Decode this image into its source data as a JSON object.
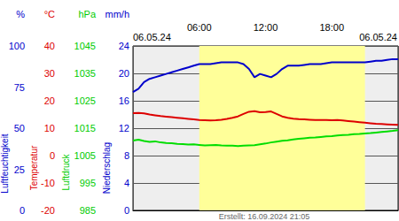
{
  "chart_data": {
    "type": "line",
    "date_labels": [
      "06.05.24",
      "06.05.24"
    ],
    "footer": "Erstellt: 16.09.2024 21:05",
    "grid": true,
    "xlim": [
      0,
      24
    ],
    "xticks": [
      {
        "value": 6,
        "label": "06:00"
      },
      {
        "value": 12,
        "label": "12:00"
      },
      {
        "value": 18,
        "label": "18:00"
      }
    ],
    "daylight": [
      6,
      21
    ],
    "x": [
      0,
      0.5,
      1,
      1.5,
      2,
      2.5,
      3,
      3.5,
      4,
      4.5,
      5,
      5.5,
      6,
      6.5,
      7,
      7.5,
      8,
      8.5,
      9,
      9.5,
      10,
      10.5,
      11,
      11.5,
      12,
      12.5,
      13,
      13.5,
      14,
      14.5,
      15,
      15.5,
      16,
      16.5,
      17,
      17.5,
      18,
      18.5,
      19,
      19.5,
      20,
      20.5,
      21,
      21.5,
      22,
      22.5,
      23,
      23.5,
      24
    ],
    "axes": [
      {
        "label": "Luftfeuchtigkeit",
        "unit": "%",
        "lim": [
          0,
          100
        ],
        "ticks": [
          0,
          25,
          50,
          75,
          100
        ],
        "color": "#0000cc"
      },
      {
        "label": "Temperatur",
        "unit": "°C",
        "lim": [
          -20,
          40
        ],
        "ticks": [
          -20,
          -10,
          0,
          10,
          20,
          30,
          40
        ],
        "color": "#dd0000"
      },
      {
        "label": "Luftdruck",
        "unit": "hPa",
        "lim": [
          985,
          1045
        ],
        "ticks": [
          985,
          995,
          1005,
          1015,
          1025,
          1035,
          1045
        ],
        "color": "#00cc00"
      },
      {
        "label": "Niederschlag",
        "unit": "mm/h",
        "lim": [
          0,
          24
        ],
        "ticks": [
          0,
          4,
          8,
          12,
          16,
          20,
          24
        ],
        "color": "#0000cc"
      }
    ],
    "series": [
      {
        "name": "Luftfeuchtigkeit",
        "axis": "y",
        "color": "#0000cc",
        "values": [
          72,
          74,
          78,
          80,
          81,
          82,
          83,
          84,
          85,
          86,
          87,
          88,
          89,
          89,
          89,
          89.5,
          90,
          90,
          90,
          90,
          89,
          86,
          81,
          83,
          82,
          81,
          83,
          86,
          88,
          88,
          88,
          88.5,
          89,
          89,
          89,
          89.5,
          90,
          90,
          90,
          90,
          90,
          90,
          90,
          90.5,
          91,
          91,
          91.5,
          92,
          92
        ]
      },
      {
        "name": "Temperatur",
        "axis": "y2",
        "color": "#dd0000",
        "values": [
          15.5,
          15.6,
          15.4,
          15.0,
          14.7,
          14.4,
          14.2,
          14.0,
          13.8,
          13.6,
          13.4,
          13.2,
          13.0,
          12.9,
          12.8,
          12.9,
          13.1,
          13.4,
          13.8,
          14.3,
          15.2,
          16.0,
          16.2,
          15.8,
          15.9,
          16.1,
          15.2,
          14.3,
          13.8,
          13.5,
          13.3,
          13.2,
          13.1,
          13.0,
          13.0,
          13.0,
          12.9,
          13.0,
          12.8,
          12.6,
          12.4,
          12.2,
          12.0,
          11.8,
          11.6,
          11.5,
          11.4,
          11.3,
          11.2
        ]
      },
      {
        "name": "Luftdruck",
        "axis": "y3",
        "color": "#00dd00",
        "values": [
          1010.5,
          1010.8,
          1010.3,
          1010.0,
          1010.2,
          1009.8,
          1009.6,
          1009.5,
          1009.3,
          1009.2,
          1009.0,
          1009.1,
          1008.9,
          1008.7,
          1008.8,
          1008.9,
          1008.7,
          1008.6,
          1008.6,
          1008.5,
          1008.6,
          1008.7,
          1008.8,
          1009.1,
          1009.4,
          1009.8,
          1010.1,
          1010.4,
          1010.6,
          1010.9,
          1011.1,
          1011.3,
          1011.5,
          1011.6,
          1011.8,
          1012.0,
          1012.1,
          1012.3,
          1012.5,
          1012.6,
          1012.8,
          1012.9,
          1013.1,
          1013.2,
          1013.4,
          1013.6,
          1013.8,
          1014.0,
          1014.3
        ]
      }
    ]
  }
}
